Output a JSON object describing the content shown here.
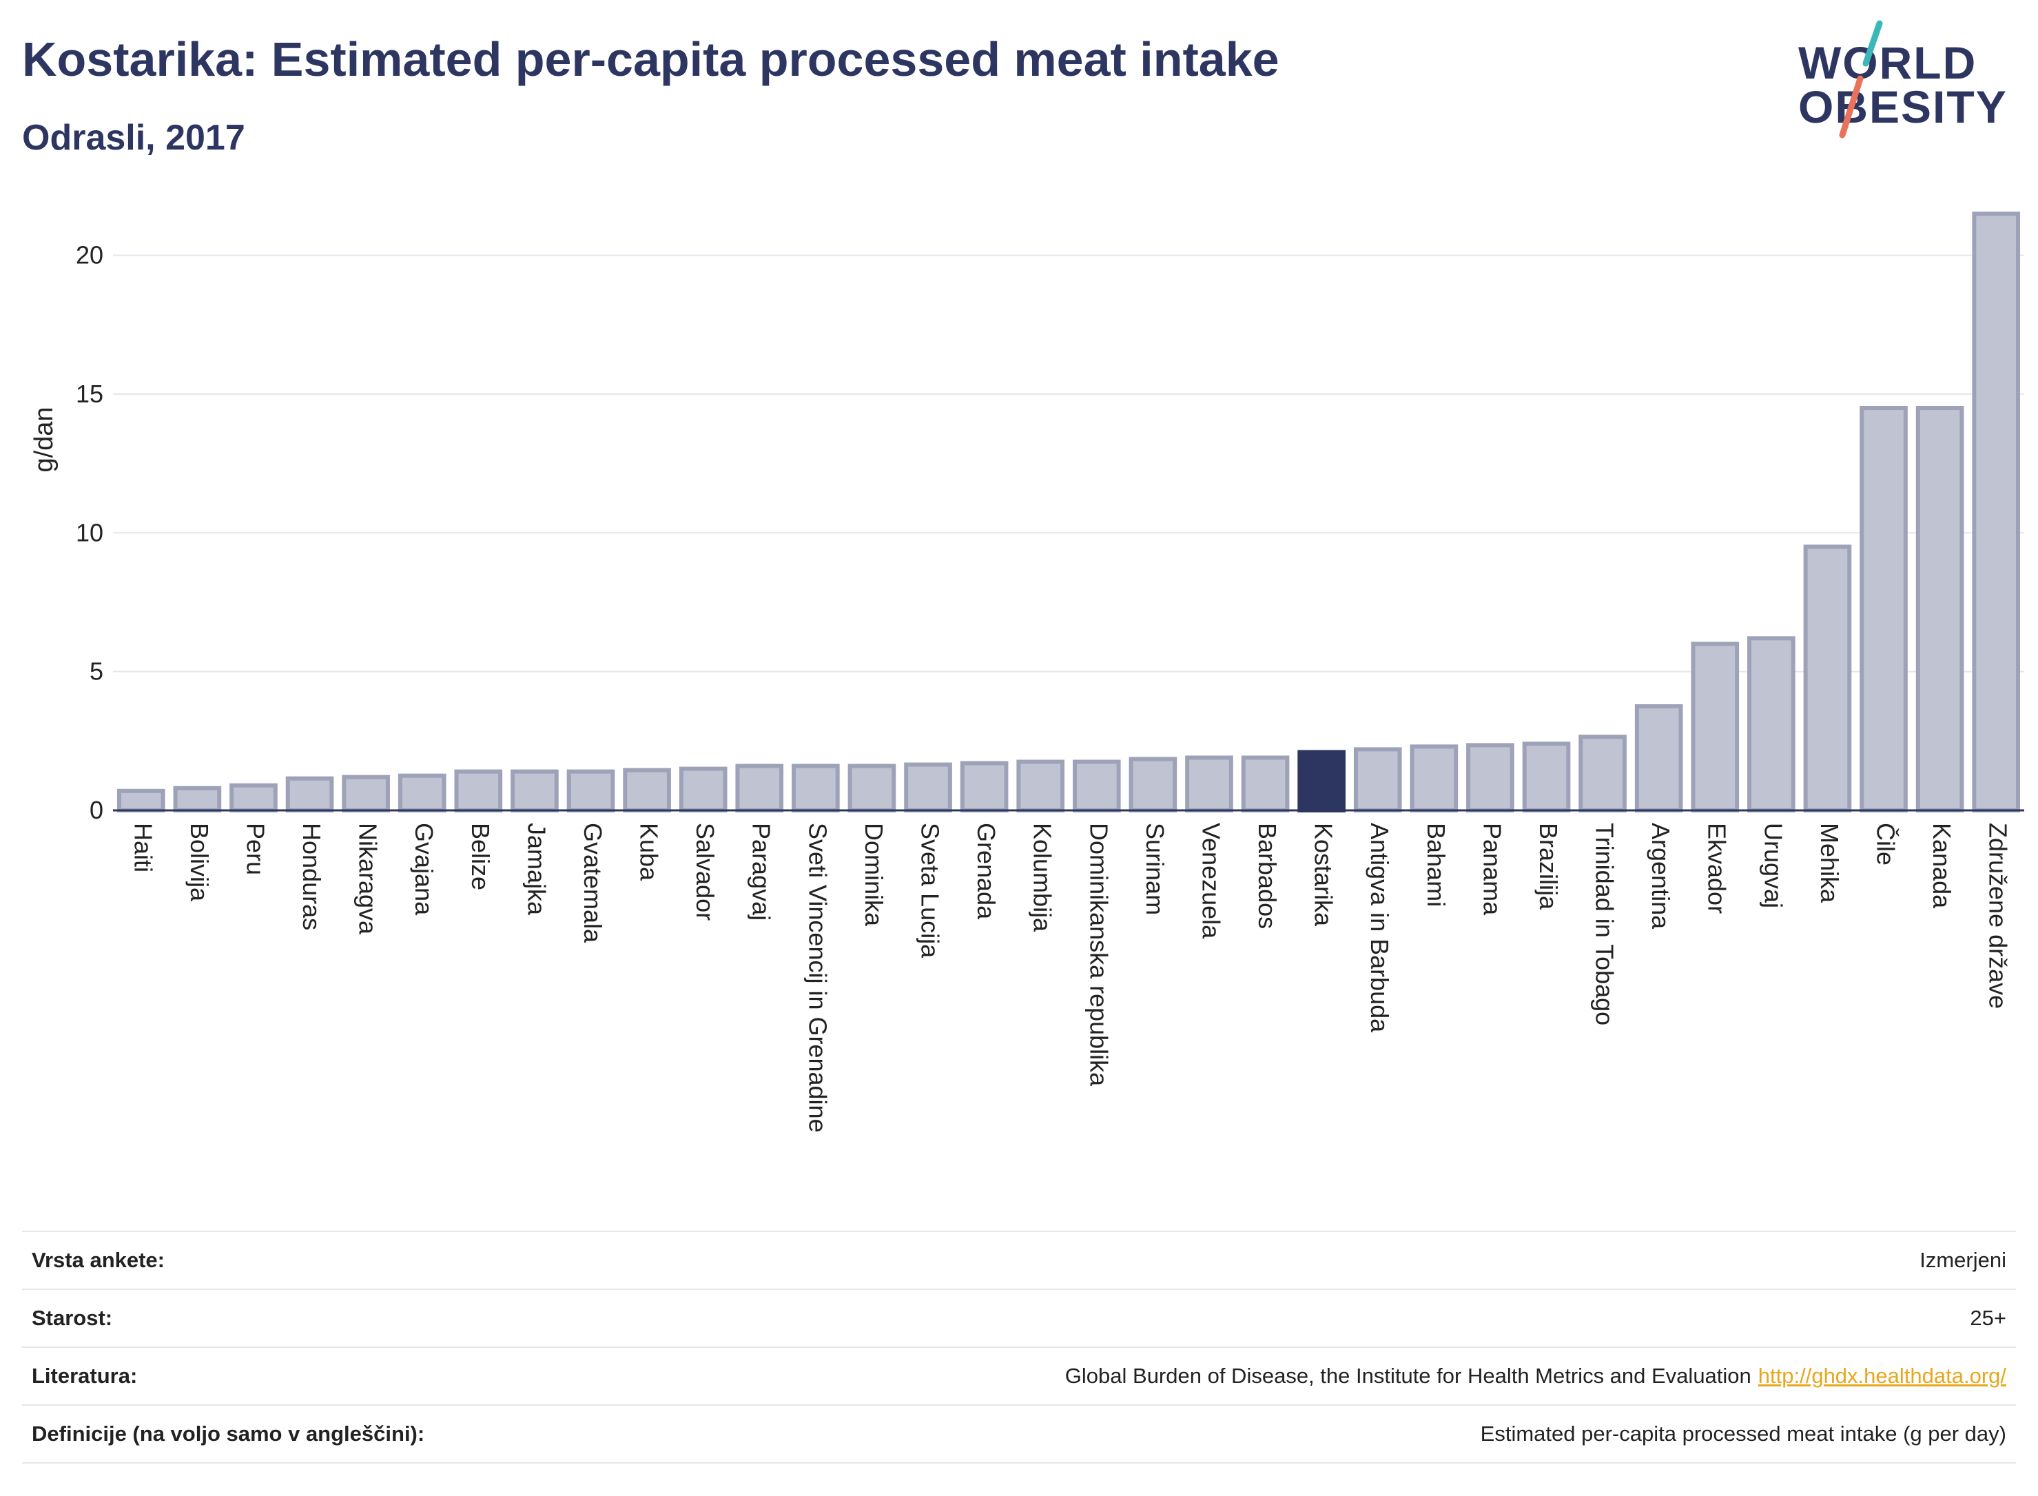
{
  "header": {
    "title": "Kostarika: Estimated per-capita processed meat intake",
    "subtitle": "Odrasli, 2017"
  },
  "logo": {
    "line1": "WORLD",
    "line2": "OBESITY",
    "colors": {
      "teal": "#3ab8b8",
      "coral": "#e8735a"
    }
  },
  "chart_data": {
    "type": "bar",
    "ylabel": "g/dan",
    "xlabel": "",
    "ylim": [
      0,
      22
    ],
    "yticks": [
      0,
      5,
      10,
      15,
      20
    ],
    "grid": true,
    "highlight": "Kostarika",
    "colors": {
      "bar": "#c0c3d1",
      "bar_stroke": "#9ea2b8",
      "highlight": "#2d3561",
      "grid": "#e5e7ec",
      "axis": "#2d3561"
    },
    "categories": [
      "Haiti",
      "Bolivija",
      "Peru",
      "Honduras",
      "Nikaragva",
      "Gvajana",
      "Belize",
      "Jamajka",
      "Gvatemala",
      "Kuba",
      "Salvador",
      "Paragvaj",
      "Sveti Vincencij in Grenadine",
      "Dominika",
      "Sveta Lucija",
      "Grenada",
      "Kolumbija",
      "Dominikanska republika",
      "Surinam",
      "Venezuela",
      "Barbados",
      "Kostarika",
      "Antigva in Barbuda",
      "Bahami",
      "Panama",
      "Brazilija",
      "Trinidad in Tobago",
      "Argentina",
      "Ekvador",
      "Urugvaj",
      "Mehika",
      "Čile",
      "Kanada",
      "Združene države"
    ],
    "values": [
      0.7,
      0.8,
      0.9,
      1.15,
      1.2,
      1.25,
      1.4,
      1.4,
      1.4,
      1.45,
      1.5,
      1.6,
      1.6,
      1.6,
      1.65,
      1.7,
      1.75,
      1.75,
      1.85,
      1.9,
      1.9,
      2.1,
      2.2,
      2.3,
      2.35,
      2.4,
      2.65,
      3.75,
      6.0,
      6.2,
      9.5,
      14.5,
      14.5,
      21.5
    ]
  },
  "info": {
    "rows": [
      {
        "label": "Vrsta ankete:",
        "value": "Izmerjeni"
      },
      {
        "label": "Starost:",
        "value": "25+"
      },
      {
        "label": "Literatura:",
        "value": "Global Burden of Disease, the Institute for Health Metrics and Evaluation",
        "link": "http://ghdx.healthdata.org/"
      },
      {
        "label": "Definicije (na voljo samo v angleščini):",
        "value": "Estimated per-capita processed meat intake (g per day)"
      }
    ]
  }
}
